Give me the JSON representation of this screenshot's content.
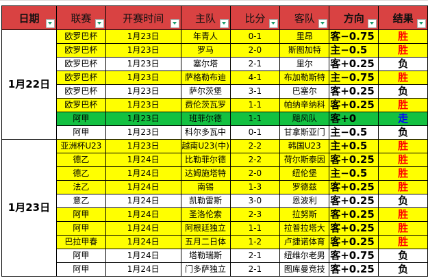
{
  "headers": [
    "日期",
    "联赛",
    "开赛时间",
    "主队",
    "比分",
    "客队",
    "方向",
    "结果"
  ],
  "colors": {
    "header": "#d94242",
    "yellow": "#ffff00",
    "green": "#13c141",
    "win": "#ff0000",
    "push": "#0000ff",
    "loss": "#000000"
  },
  "groups": [
    {
      "date": "1月22日",
      "rows": [
        {
          "league": "欧罗巴杯",
          "time": "1月23日",
          "home": "年青人",
          "score": "0-1",
          "away": "里昂",
          "dir": "客−0.75",
          "result": "胜",
          "fill": "yellow"
        },
        {
          "league": "欧罗巴杯",
          "time": "1月23日",
          "home": "罗马",
          "score": "2-0",
          "away": "斯图加特",
          "dir": "主−0.5",
          "result": "胜",
          "fill": "yellow"
        },
        {
          "league": "欧罗巴杯",
          "time": "1月23日",
          "home": "塞尔塔",
          "score": "2-1",
          "away": "里尔",
          "dir": "客+0.25",
          "result": "负",
          "fill": "white"
        },
        {
          "league": "欧罗巴杯",
          "time": "1月23日",
          "home": "萨格勒布迪",
          "score": "4-1",
          "away": "布加勒斯特",
          "dir": "主−0.75",
          "result": "胜",
          "fill": "yellow"
        },
        {
          "league": "欧罗巴杯",
          "time": "1月23日",
          "home": "萨尔茨堡",
          "score": "3-1",
          "away": "巴塞尔",
          "dir": "客+0.25",
          "result": "负",
          "fill": "white"
        },
        {
          "league": "欧罗巴杯",
          "time": "1月23日",
          "home": "费伦茨瓦罗",
          "score": "1-1",
          "away": "帕纳辛纳科",
          "dir": "客+0.25",
          "result": "胜",
          "fill": "yellow"
        },
        {
          "league": "阿甲",
          "time": "1月23日",
          "home": "班菲尔德",
          "score": "1-1",
          "away": "飓风队",
          "dir": "客+0",
          "result": "走",
          "fill": "green"
        },
        {
          "league": "阿甲",
          "time": "1月23日",
          "home": "科尔多瓦中",
          "score": "0-1",
          "away": "甘拿斯亚门",
          "dir": "主−0.5",
          "result": "负",
          "fill": "white"
        }
      ]
    },
    {
      "date": "1月23日",
      "rows": [
        {
          "league": "亚洲杯U23",
          "time": "1月23日",
          "home": "越南U23(中)",
          "score": "2-2",
          "away": "韩国U23",
          "dir": "主+0.5",
          "result": "胜",
          "fill": "yellow"
        },
        {
          "league": "德乙",
          "time": "1月24日",
          "home": "比勒菲尔德",
          "score": "2-2",
          "away": "荷尔斯泰因",
          "dir": "客+0.25",
          "result": "胜",
          "fill": "yellow"
        },
        {
          "league": "德乙",
          "time": "1月24日",
          "home": "达姆施塔特",
          "score": "2-0",
          "away": "纽伦堡",
          "dir": "主−0.5",
          "result": "胜",
          "fill": "yellow"
        },
        {
          "league": "法乙",
          "time": "1月24日",
          "home": "南锡",
          "score": "1-3",
          "away": "罗德兹",
          "dir": "客+0.25",
          "result": "胜",
          "fill": "yellow"
        },
        {
          "league": "意乙",
          "time": "1月24日",
          "home": "凯勒雷斯",
          "score": "3-0",
          "away": "恩波利",
          "dir": "客+0.25",
          "result": "负",
          "fill": "white"
        },
        {
          "league": "阿甲",
          "time": "1月24日",
          "home": "圣洛伦索",
          "score": "2-3",
          "away": "拉努斯",
          "dir": "客+0.25",
          "result": "胜",
          "fill": "yellow"
        },
        {
          "league": "阿甲",
          "time": "1月24日",
          "home": "阿根廷独立",
          "score": "1-1",
          "away": "拉普拉塔大",
          "dir": "客+0.25",
          "result": "胜",
          "fill": "yellow"
        },
        {
          "league": "巴拉甲春",
          "time": "1月24日",
          "home": "五月二日体",
          "score": "1-2",
          "away": "卢捷诺体育",
          "dir": "客+0.25",
          "result": "胜",
          "fill": "yellow"
        },
        {
          "league": "阿甲",
          "time": "1月24日",
          "home": "塔勒瑞斯",
          "score": "2-1",
          "away": "纽维尔老男",
          "dir": "客+0.75",
          "result": "负",
          "fill": "white"
        },
        {
          "league": "阿甲",
          "time": "1月24日",
          "home": "门多萨独立",
          "score": "2-1",
          "away": "图库曼竞技",
          "dir": "客+0.25",
          "result": "负",
          "fill": "white"
        }
      ]
    }
  ]
}
